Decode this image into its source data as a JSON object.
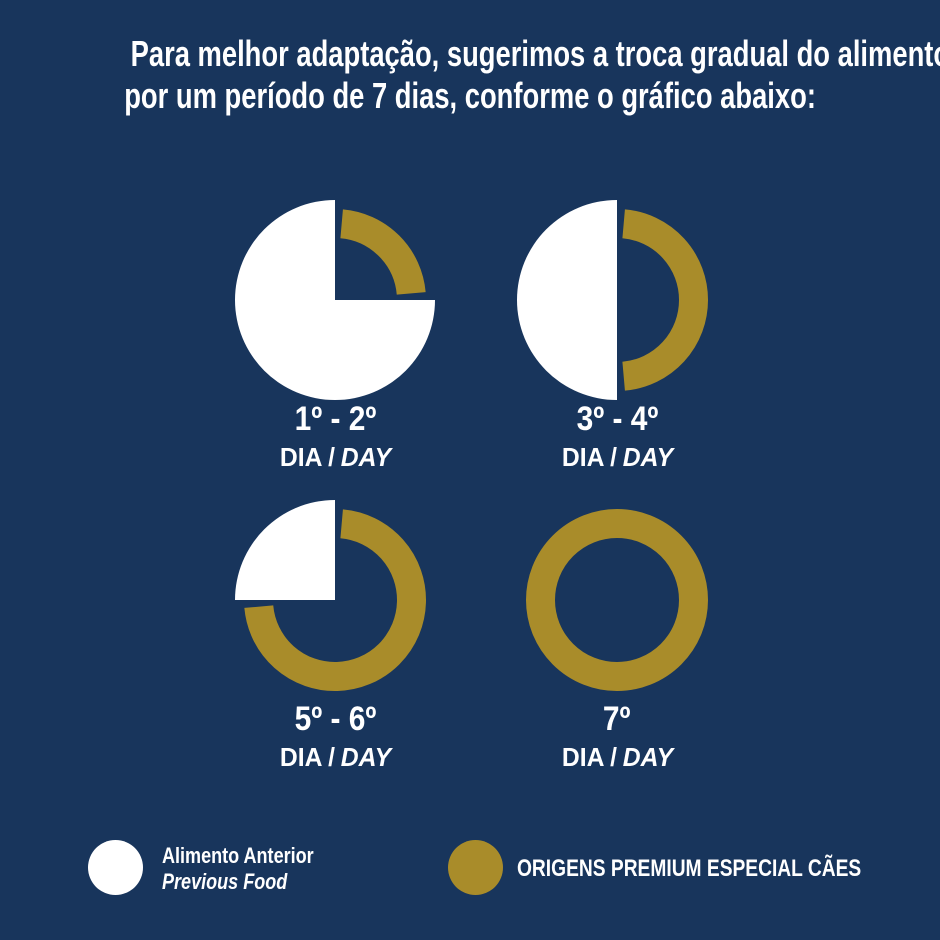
{
  "colors": {
    "background": "#18355C",
    "gold": "#A98C2A",
    "white": "#FFFFFF",
    "text": "#FFFFFF"
  },
  "title": {
    "line1": "Para melhor adaptação, sugerimos a troca gradual do alimento,",
    "line2": "por um período de 7 dias, conforme o gráfico abaixo:"
  },
  "chart_data": [
    {
      "type": "pie",
      "id": "day-1-2",
      "range_label": "1º - 2º",
      "dia_label": "DIA",
      "separator": "/",
      "day_label": "DAY",
      "unit": "%",
      "slices": [
        {
          "label": "Alimento Anterior / Previous Food",
          "value": 75,
          "color": "#FFFFFF",
          "render": "solid-sector"
        },
        {
          "label": "ORIGENS PREMIUM ESPECIAL CÃES",
          "value": 25,
          "color": "#A98C2A",
          "render": "ring-arc"
        }
      ]
    },
    {
      "type": "pie",
      "id": "day-3-4",
      "range_label": "3º - 4º",
      "dia_label": "DIA",
      "separator": "/",
      "day_label": "DAY",
      "unit": "%",
      "slices": [
        {
          "label": "Alimento Anterior / Previous Food",
          "value": 50,
          "color": "#FFFFFF",
          "render": "solid-sector"
        },
        {
          "label": "ORIGENS PREMIUM ESPECIAL CÃES",
          "value": 50,
          "color": "#A98C2A",
          "render": "ring-arc"
        }
      ]
    },
    {
      "type": "pie",
      "id": "day-5-6",
      "range_label": "5º - 6º",
      "dia_label": "DIA",
      "separator": "/",
      "day_label": "DAY",
      "unit": "%",
      "slices": [
        {
          "label": "Alimento Anterior / Previous Food",
          "value": 25,
          "color": "#FFFFFF",
          "render": "solid-sector"
        },
        {
          "label": "ORIGENS PREMIUM ESPECIAL CÃES",
          "value": 75,
          "color": "#A98C2A",
          "render": "ring-arc"
        }
      ]
    },
    {
      "type": "pie",
      "id": "day-7",
      "range_label": "7º",
      "dia_label": "DIA",
      "separator": "/",
      "day_label": "DAY",
      "unit": "%",
      "slices": [
        {
          "label": "Alimento Anterior / Previous Food",
          "value": 0,
          "color": "#FFFFFF",
          "render": "solid-sector"
        },
        {
          "label": "ORIGENS PREMIUM ESPECIAL CÃES",
          "value": 100,
          "color": "#A98C2A",
          "render": "ring-arc"
        }
      ]
    }
  ],
  "legend": {
    "items": [
      {
        "swatch_color": "#FFFFFF",
        "line1": "Alimento Anterior",
        "line2": "Previous Food"
      },
      {
        "swatch_color": "#A98C2A",
        "line1": "ORIGENS PREMIUM ESPECIAL CÃES"
      }
    ]
  }
}
